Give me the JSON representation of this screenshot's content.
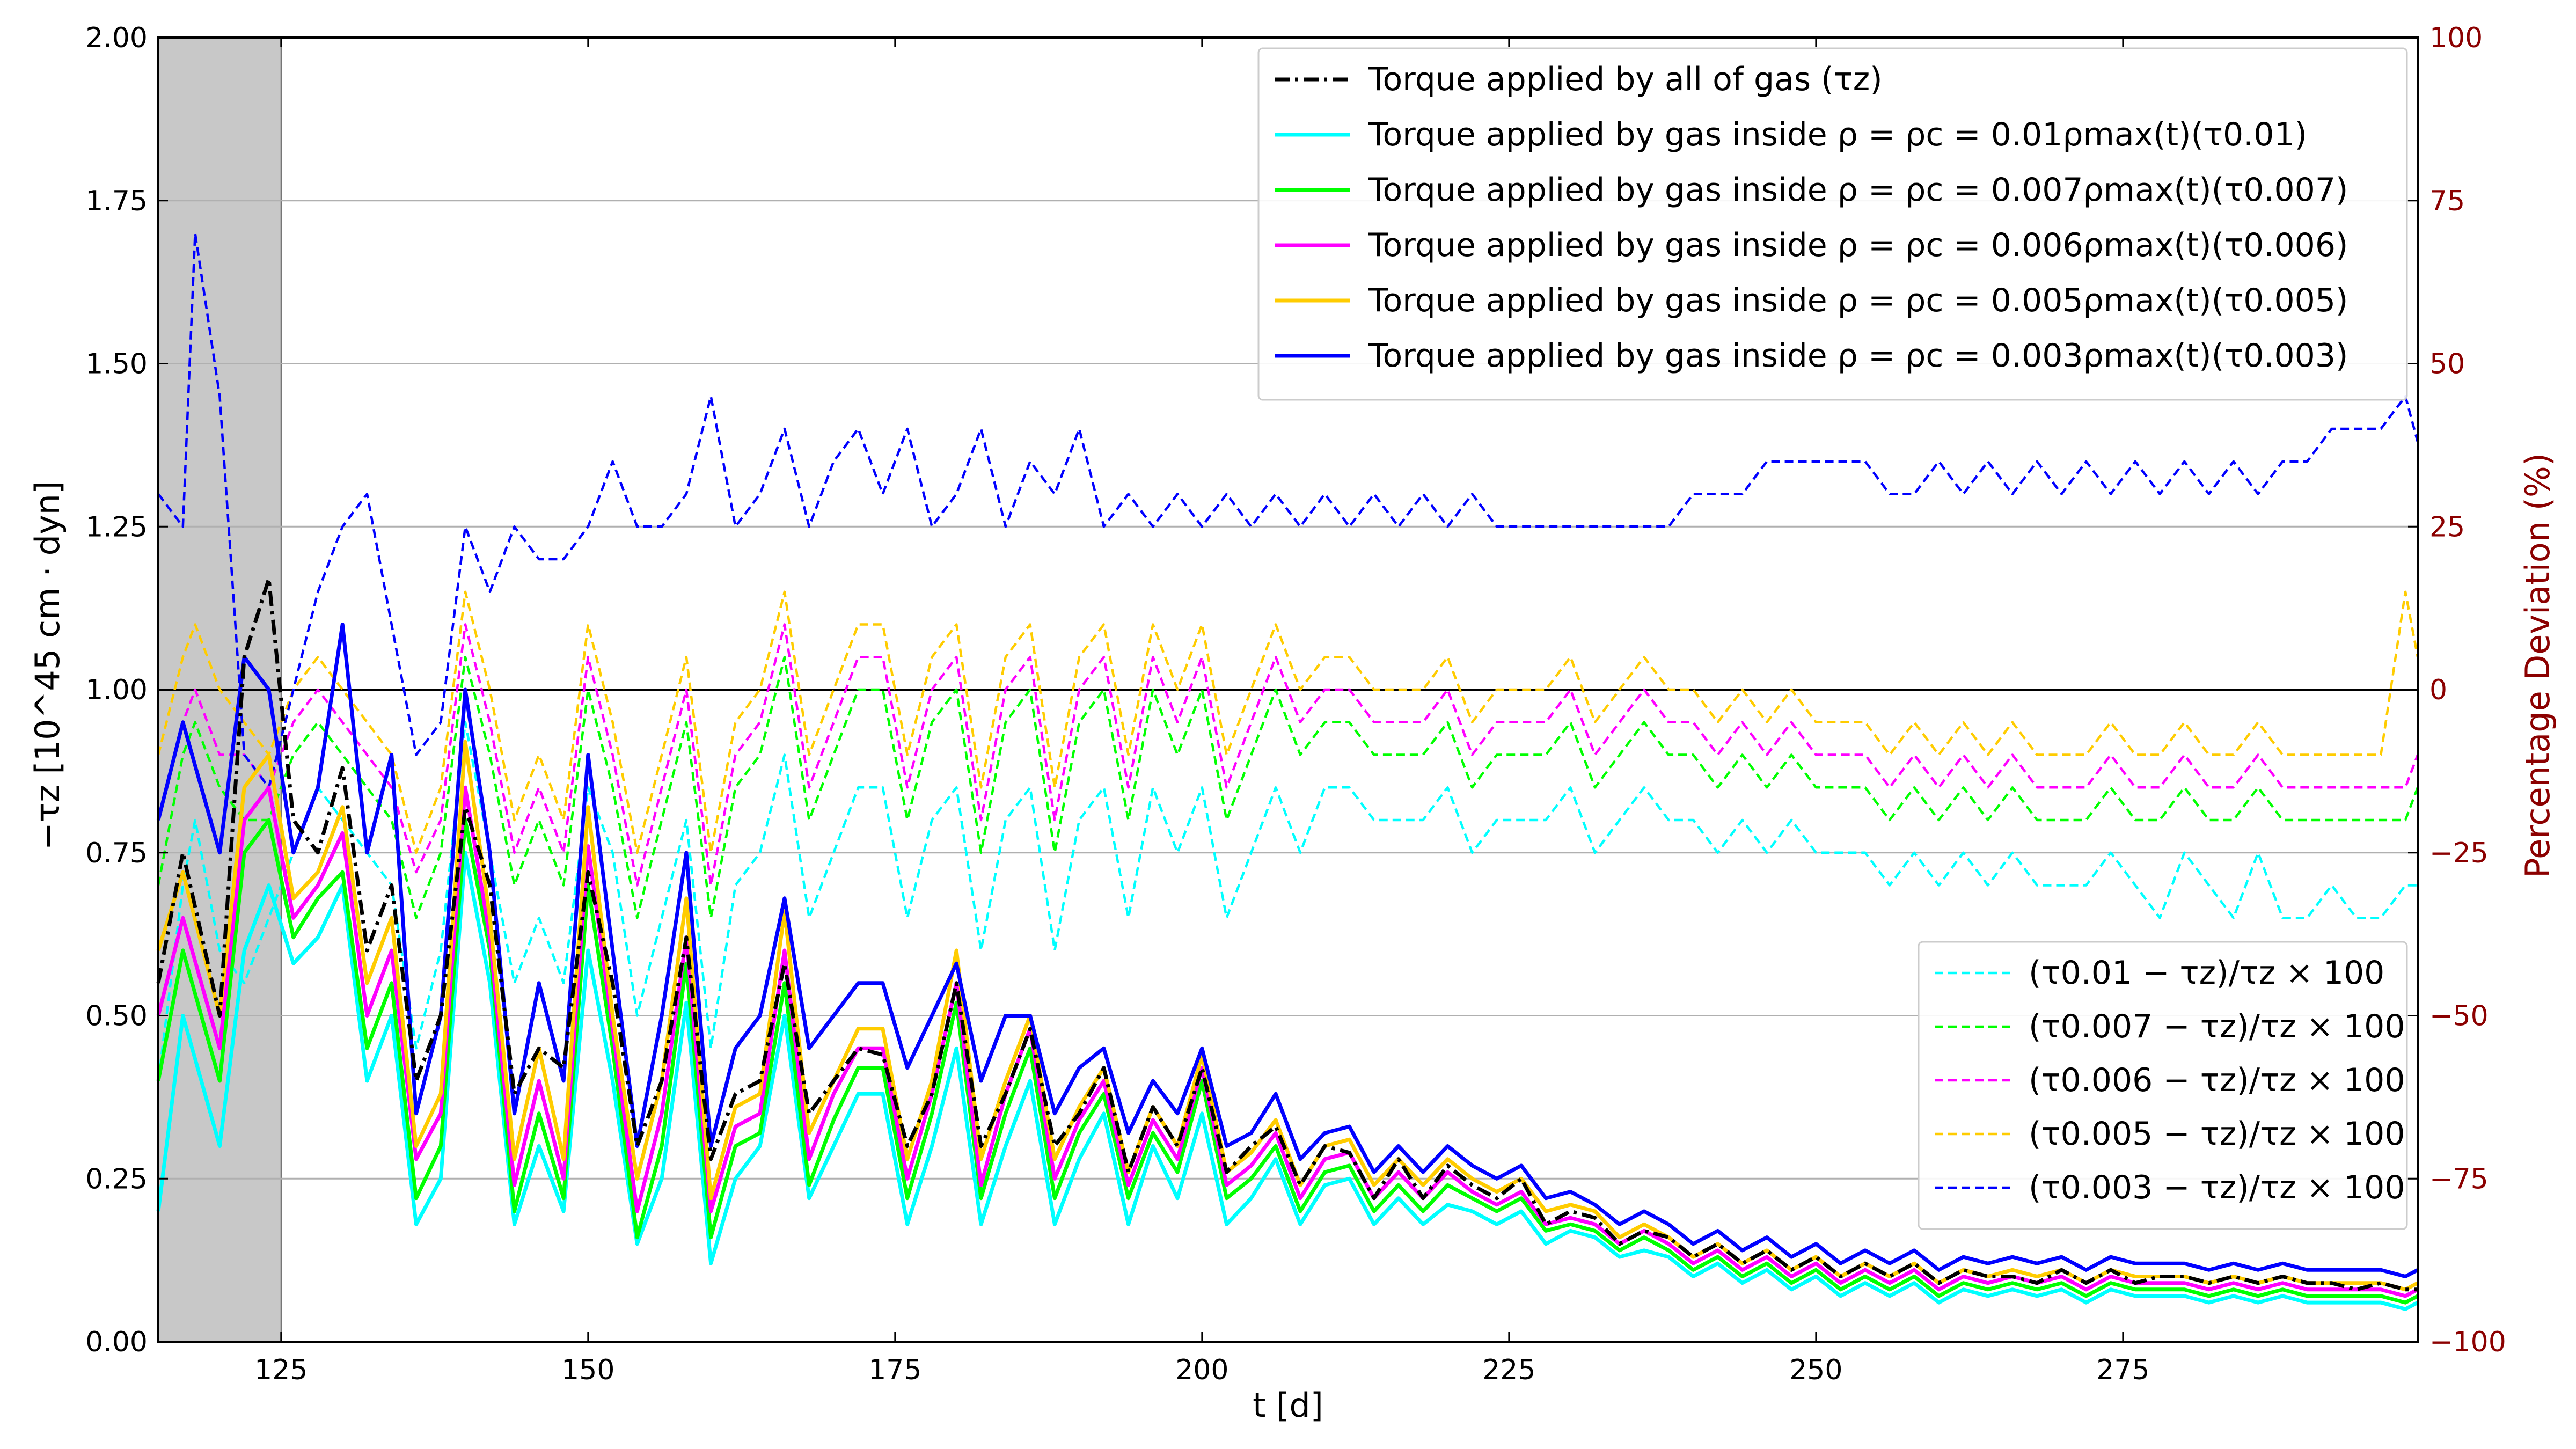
{
  "chart_data": {
    "type": "line",
    "xlabel": "t [d]",
    "ylabel_left": "−τz [10^45 cm · dyn]",
    "ylabel_right": "Percentage Deviation (%)",
    "xlim": [
      115,
      299
    ],
    "ylim_left": [
      0,
      2
    ],
    "ylim_right": [
      -100,
      100
    ],
    "x_ticks": [
      125,
      150,
      175,
      200,
      225,
      250,
      275
    ],
    "y_ticks_left": [
      "0.00",
      "0.25",
      "0.50",
      "0.75",
      "1.00",
      "1.25",
      "1.50",
      "1.75",
      "2.00"
    ],
    "y_ticks_right": [
      "−100",
      "−75",
      "−50",
      "−25",
      "0",
      "25",
      "50",
      "75",
      "100"
    ],
    "grid": "horizontal",
    "shaded_region": [
      115,
      125
    ],
    "reference_line_right": 0,
    "legend_upper": {
      "placement": "top-right",
      "entries": [
        {
          "label": "Torque applied by all of gas (τz)",
          "color": "#000000",
          "style": "dashdot"
        },
        {
          "label": "Torque applied by gas inside ρ = ρc = 0.01ρmax(t)(τ0.01)",
          "color": "#00ffff",
          "style": "solid"
        },
        {
          "label": "Torque applied by gas inside ρ = ρc = 0.007ρmax(t)(τ0.007)",
          "color": "#00ff00",
          "style": "solid"
        },
        {
          "label": "Torque applied by gas inside ρ = ρc = 0.006ρmax(t)(τ0.006)",
          "color": "#ff00ff",
          "style": "solid"
        },
        {
          "label": "Torque applied by gas inside ρ = ρc = 0.005ρmax(t)(τ0.005)",
          "color": "#ffcc00",
          "style": "solid"
        },
        {
          "label": "Torque applied by gas inside ρ = ρc = 0.003ρmax(t)(τ0.003)",
          "color": "#0000ff",
          "style": "solid"
        }
      ]
    },
    "legend_lower": {
      "placement": "lower-right",
      "entries": [
        {
          "label": "(τ0.01 − τz)/τz × 100",
          "color": "#00ffff",
          "style": "dashed"
        },
        {
          "label": "(τ0.007 − τz)/τz × 100",
          "color": "#00ff00",
          "style": "dashed"
        },
        {
          "label": "(τ0.006 − τz)/τz × 100",
          "color": "#ff00ff",
          "style": "dashed"
        },
        {
          "label": "(τ0.005 − τz)/τz × 100",
          "color": "#ffcc00",
          "style": "dashed"
        },
        {
          "label": "(τ0.003 − τz)/τz × 100",
          "color": "#0000ff",
          "style": "dashed"
        }
      ]
    },
    "series_torque": {
      "x": [
        115,
        117,
        120,
        122,
        124,
        126,
        128,
        130,
        132,
        134,
        136,
        138,
        140,
        142,
        144,
        146,
        148,
        150,
        152,
        154,
        156,
        158,
        160,
        162,
        164,
        166,
        168,
        170,
        172,
        174,
        176,
        178,
        180,
        182,
        184,
        186,
        188,
        190,
        192,
        194,
        196,
        198,
        200,
        202,
        204,
        206,
        208,
        210,
        212,
        214,
        216,
        218,
        220,
        222,
        224,
        226,
        228,
        230,
        232,
        234,
        236,
        238,
        240,
        242,
        244,
        246,
        248,
        250,
        252,
        254,
        256,
        258,
        260,
        262,
        264,
        266,
        268,
        270,
        272,
        274,
        276,
        278,
        280,
        282,
        284,
        286,
        288,
        290,
        292,
        294,
        296,
        298,
        299
      ],
      "tau_z": [
        0.55,
        0.75,
        0.5,
        1.05,
        1.17,
        0.8,
        0.75,
        0.88,
        0.6,
        0.7,
        0.4,
        0.5,
        0.82,
        0.7,
        0.38,
        0.45,
        0.42,
        0.72,
        0.55,
        0.3,
        0.4,
        0.62,
        0.28,
        0.38,
        0.4,
        0.58,
        0.35,
        0.4,
        0.45,
        0.44,
        0.3,
        0.38,
        0.55,
        0.3,
        0.38,
        0.48,
        0.3,
        0.35,
        0.42,
        0.26,
        0.36,
        0.3,
        0.42,
        0.26,
        0.3,
        0.33,
        0.24,
        0.3,
        0.29,
        0.22,
        0.28,
        0.22,
        0.27,
        0.24,
        0.22,
        0.25,
        0.18,
        0.2,
        0.19,
        0.15,
        0.17,
        0.16,
        0.13,
        0.15,
        0.12,
        0.14,
        0.11,
        0.13,
        0.1,
        0.12,
        0.1,
        0.12,
        0.09,
        0.11,
        0.1,
        0.1,
        0.09,
        0.11,
        0.09,
        0.11,
        0.09,
        0.1,
        0.1,
        0.09,
        0.1,
        0.09,
        0.1,
        0.09,
        0.09,
        0.08,
        0.09,
        0.08,
        0.08
      ],
      "tau_0_01": [
        0.2,
        0.5,
        0.3,
        0.6,
        0.7,
        0.58,
        0.62,
        0.7,
        0.4,
        0.5,
        0.18,
        0.25,
        0.75,
        0.55,
        0.18,
        0.3,
        0.2,
        0.6,
        0.4,
        0.15,
        0.25,
        0.52,
        0.12,
        0.25,
        0.3,
        0.5,
        0.22,
        0.3,
        0.38,
        0.38,
        0.18,
        0.3,
        0.45,
        0.18,
        0.3,
        0.4,
        0.18,
        0.28,
        0.35,
        0.18,
        0.3,
        0.22,
        0.35,
        0.18,
        0.22,
        0.28,
        0.18,
        0.24,
        0.25,
        0.18,
        0.22,
        0.18,
        0.21,
        0.2,
        0.18,
        0.2,
        0.15,
        0.17,
        0.16,
        0.13,
        0.14,
        0.13,
        0.1,
        0.12,
        0.09,
        0.11,
        0.08,
        0.1,
        0.07,
        0.09,
        0.07,
        0.09,
        0.06,
        0.08,
        0.07,
        0.08,
        0.07,
        0.08,
        0.06,
        0.08,
        0.07,
        0.07,
        0.07,
        0.06,
        0.07,
        0.06,
        0.07,
        0.06,
        0.06,
        0.06,
        0.06,
        0.05,
        0.06
      ],
      "tau_0_007": [
        0.4,
        0.6,
        0.4,
        0.75,
        0.8,
        0.62,
        0.68,
        0.72,
        0.45,
        0.55,
        0.22,
        0.3,
        0.8,
        0.6,
        0.2,
        0.35,
        0.22,
        0.7,
        0.45,
        0.16,
        0.3,
        0.58,
        0.16,
        0.3,
        0.32,
        0.55,
        0.24,
        0.34,
        0.42,
        0.42,
        0.22,
        0.35,
        0.52,
        0.22,
        0.35,
        0.45,
        0.22,
        0.32,
        0.38,
        0.22,
        0.32,
        0.26,
        0.4,
        0.22,
        0.25,
        0.3,
        0.2,
        0.26,
        0.27,
        0.2,
        0.24,
        0.2,
        0.24,
        0.22,
        0.2,
        0.22,
        0.17,
        0.18,
        0.17,
        0.14,
        0.16,
        0.14,
        0.11,
        0.13,
        0.1,
        0.12,
        0.09,
        0.11,
        0.08,
        0.1,
        0.08,
        0.1,
        0.07,
        0.09,
        0.08,
        0.09,
        0.08,
        0.09,
        0.07,
        0.09,
        0.08,
        0.08,
        0.08,
        0.07,
        0.08,
        0.07,
        0.08,
        0.07,
        0.07,
        0.07,
        0.07,
        0.06,
        0.07
      ],
      "tau_0_006": [
        0.5,
        0.65,
        0.45,
        0.8,
        0.85,
        0.65,
        0.7,
        0.78,
        0.5,
        0.6,
        0.28,
        0.35,
        0.85,
        0.62,
        0.24,
        0.4,
        0.25,
        0.76,
        0.48,
        0.2,
        0.35,
        0.62,
        0.2,
        0.33,
        0.35,
        0.6,
        0.28,
        0.38,
        0.45,
        0.45,
        0.25,
        0.38,
        0.55,
        0.24,
        0.38,
        0.48,
        0.25,
        0.34,
        0.4,
        0.24,
        0.34,
        0.28,
        0.42,
        0.24,
        0.27,
        0.32,
        0.22,
        0.28,
        0.29,
        0.22,
        0.26,
        0.22,
        0.26,
        0.23,
        0.21,
        0.23,
        0.18,
        0.19,
        0.18,
        0.15,
        0.17,
        0.15,
        0.12,
        0.14,
        0.11,
        0.13,
        0.1,
        0.12,
        0.09,
        0.11,
        0.09,
        0.11,
        0.08,
        0.1,
        0.09,
        0.1,
        0.09,
        0.1,
        0.08,
        0.1,
        0.09,
        0.09,
        0.09,
        0.08,
        0.09,
        0.08,
        0.09,
        0.08,
        0.08,
        0.08,
        0.08,
        0.07,
        0.08
      ],
      "tau_0_005": [
        0.6,
        0.72,
        0.5,
        0.85,
        0.9,
        0.68,
        0.72,
        0.82,
        0.55,
        0.65,
        0.3,
        0.38,
        0.92,
        0.65,
        0.28,
        0.45,
        0.28,
        0.82,
        0.5,
        0.25,
        0.4,
        0.68,
        0.22,
        0.36,
        0.38,
        0.66,
        0.32,
        0.4,
        0.48,
        0.48,
        0.28,
        0.4,
        0.6,
        0.28,
        0.4,
        0.5,
        0.28,
        0.36,
        0.42,
        0.26,
        0.36,
        0.3,
        0.44,
        0.26,
        0.29,
        0.34,
        0.24,
        0.3,
        0.31,
        0.24,
        0.28,
        0.24,
        0.28,
        0.25,
        0.23,
        0.25,
        0.2,
        0.21,
        0.2,
        0.16,
        0.18,
        0.16,
        0.13,
        0.15,
        0.12,
        0.14,
        0.11,
        0.13,
        0.1,
        0.12,
        0.1,
        0.12,
        0.09,
        0.11,
        0.1,
        0.11,
        0.1,
        0.11,
        0.09,
        0.11,
        0.1,
        0.1,
        0.1,
        0.09,
        0.1,
        0.09,
        0.1,
        0.09,
        0.09,
        0.09,
        0.09,
        0.08,
        0.09
      ],
      "tau_0_003": [
        0.8,
        0.95,
        0.75,
        1.05,
        1.0,
        0.75,
        0.85,
        1.1,
        0.75,
        0.9,
        0.35,
        0.5,
        1.0,
        0.75,
        0.35,
        0.55,
        0.4,
        0.9,
        0.6,
        0.3,
        0.5,
        0.75,
        0.3,
        0.45,
        0.5,
        0.68,
        0.45,
        0.5,
        0.55,
        0.55,
        0.42,
        0.5,
        0.58,
        0.4,
        0.5,
        0.5,
        0.35,
        0.42,
        0.45,
        0.32,
        0.4,
        0.35,
        0.45,
        0.3,
        0.32,
        0.38,
        0.28,
        0.32,
        0.33,
        0.26,
        0.3,
        0.26,
        0.3,
        0.27,
        0.25,
        0.27,
        0.22,
        0.23,
        0.21,
        0.18,
        0.2,
        0.18,
        0.15,
        0.17,
        0.14,
        0.16,
        0.13,
        0.15,
        0.12,
        0.14,
        0.12,
        0.14,
        0.11,
        0.13,
        0.12,
        0.13,
        0.12,
        0.13,
        0.11,
        0.13,
        0.12,
        0.12,
        0.12,
        0.11,
        0.12,
        0.11,
        0.12,
        0.11,
        0.11,
        0.11,
        0.11,
        0.1,
        0.11
      ]
    },
    "series_deviation": {
      "x": [
        115,
        117,
        118,
        120,
        122,
        124,
        126,
        128,
        130,
        132,
        134,
        136,
        138,
        140,
        142,
        144,
        146,
        148,
        150,
        152,
        154,
        156,
        158,
        160,
        162,
        164,
        166,
        168,
        170,
        172,
        174,
        176,
        178,
        180,
        182,
        184,
        186,
        188,
        190,
        192,
        194,
        196,
        198,
        200,
        202,
        204,
        206,
        208,
        210,
        212,
        214,
        216,
        218,
        220,
        222,
        224,
        226,
        228,
        230,
        232,
        234,
        236,
        238,
        240,
        242,
        244,
        246,
        248,
        250,
        252,
        254,
        256,
        258,
        260,
        262,
        264,
        266,
        268,
        270,
        272,
        274,
        276,
        278,
        280,
        282,
        284,
        286,
        288,
        290,
        292,
        294,
        296,
        298,
        299
      ],
      "dev_0_01": [
        -60,
        -30,
        -20,
        -40,
        -45,
        -35,
        -25,
        -15,
        -20,
        -25,
        -30,
        -55,
        -40,
        -5,
        -25,
        -45,
        -35,
        -45,
        -15,
        -25,
        -50,
        -35,
        -20,
        -55,
        -30,
        -25,
        -10,
        -35,
        -25,
        -15,
        -15,
        -35,
        -20,
        -15,
        -40,
        -20,
        -15,
        -40,
        -20,
        -15,
        -35,
        -15,
        -25,
        -15,
        -35,
        -25,
        -15,
        -25,
        -15,
        -15,
        -20,
        -20,
        -20,
        -15,
        -25,
        -20,
        -20,
        -20,
        -15,
        -25,
        -20,
        -15,
        -20,
        -20,
        -25,
        -20,
        -25,
        -20,
        -25,
        -25,
        -25,
        -30,
        -25,
        -30,
        -25,
        -30,
        -25,
        -30,
        -30,
        -30,
        -25,
        -30,
        -35,
        -25,
        -30,
        -35,
        -25,
        -35,
        -35,
        -30,
        -35,
        -35,
        -30,
        -30
      ],
      "dev_0_007": [
        -30,
        -10,
        -5,
        -15,
        -20,
        -20,
        -10,
        -5,
        -10,
        -15,
        -20,
        -35,
        -25,
        5,
        -10,
        -30,
        -20,
        -30,
        0,
        -15,
        -35,
        -20,
        -5,
        -35,
        -15,
        -10,
        5,
        -20,
        -10,
        0,
        0,
        -20,
        -5,
        0,
        -25,
        -5,
        0,
        -25,
        -5,
        0,
        -20,
        0,
        -10,
        0,
        -20,
        -10,
        0,
        -10,
        -5,
        -5,
        -10,
        -10,
        -10,
        -5,
        -15,
        -10,
        -10,
        -10,
        -5,
        -15,
        -10,
        -5,
        -10,
        -10,
        -15,
        -10,
        -15,
        -10,
        -15,
        -15,
        -15,
        -20,
        -15,
        -20,
        -15,
        -20,
        -15,
        -20,
        -20,
        -20,
        -15,
        -20,
        -20,
        -15,
        -20,
        -20,
        -15,
        -20,
        -20,
        -20,
        -20,
        -20,
        -20,
        -15
      ],
      "dev_0_006": [
        -20,
        -5,
        0,
        -10,
        -10,
        -15,
        -5,
        0,
        -5,
        -10,
        -15,
        -28,
        -20,
        10,
        -5,
        -25,
        -15,
        -25,
        5,
        -10,
        -30,
        -15,
        0,
        -30,
        -10,
        -5,
        10,
        -15,
        -5,
        5,
        5,
        -15,
        0,
        5,
        -20,
        0,
        5,
        -20,
        0,
        5,
        -15,
        5,
        -5,
        5,
        -15,
        -5,
        5,
        -5,
        0,
        0,
        -5,
        -5,
        -5,
        0,
        -10,
        -5,
        -5,
        -5,
        0,
        -10,
        -5,
        0,
        -5,
        -5,
        -10,
        -5,
        -10,
        -5,
        -10,
        -10,
        -10,
        -15,
        -10,
        -15,
        -10,
        -15,
        -10,
        -15,
        -15,
        -15,
        -10,
        -15,
        -15,
        -10,
        -15,
        -15,
        -10,
        -15,
        -15,
        -15,
        -15,
        -15,
        -15,
        -10
      ],
      "dev_0_005": [
        -10,
        5,
        10,
        0,
        -5,
        -10,
        0,
        5,
        0,
        -5,
        -10,
        -25,
        -15,
        15,
        0,
        -20,
        -10,
        -20,
        10,
        -5,
        -25,
        -10,
        5,
        -25,
        -5,
        0,
        15,
        -10,
        0,
        10,
        10,
        -10,
        5,
        10,
        -15,
        5,
        10,
        -15,
        5,
        10,
        -10,
        10,
        0,
        10,
        -10,
        0,
        10,
        0,
        5,
        5,
        0,
        0,
        0,
        5,
        -5,
        0,
        0,
        0,
        5,
        -5,
        0,
        5,
        0,
        0,
        -5,
        0,
        -5,
        0,
        -5,
        -5,
        -5,
        -10,
        -5,
        -10,
        -5,
        -10,
        -5,
        -10,
        -10,
        -10,
        -5,
        -10,
        -10,
        -5,
        -10,
        -10,
        -5,
        -10,
        -10,
        -10,
        -10,
        -10,
        15,
        5
      ],
      "dev_0_003": [
        30,
        25,
        70,
        45,
        -10,
        -15,
        0,
        15,
        25,
        30,
        10,
        -10,
        -5,
        25,
        15,
        25,
        20,
        20,
        25,
        35,
        25,
        25,
        30,
        45,
        25,
        30,
        40,
        25,
        35,
        40,
        30,
        40,
        25,
        30,
        40,
        25,
        35,
        30,
        40,
        25,
        30,
        25,
        30,
        25,
        30,
        25,
        30,
        25,
        30,
        25,
        30,
        25,
        30,
        25,
        30,
        25,
        25,
        25,
        25,
        25,
        25,
        25,
        25,
        30,
        30,
        30,
        35,
        35,
        35,
        35,
        35,
        30,
        30,
        35,
        30,
        35,
        30,
        35,
        30,
        35,
        30,
        35,
        30,
        35,
        30,
        35,
        30,
        35,
        35,
        40,
        40,
        40,
        45,
        38
      ]
    }
  }
}
